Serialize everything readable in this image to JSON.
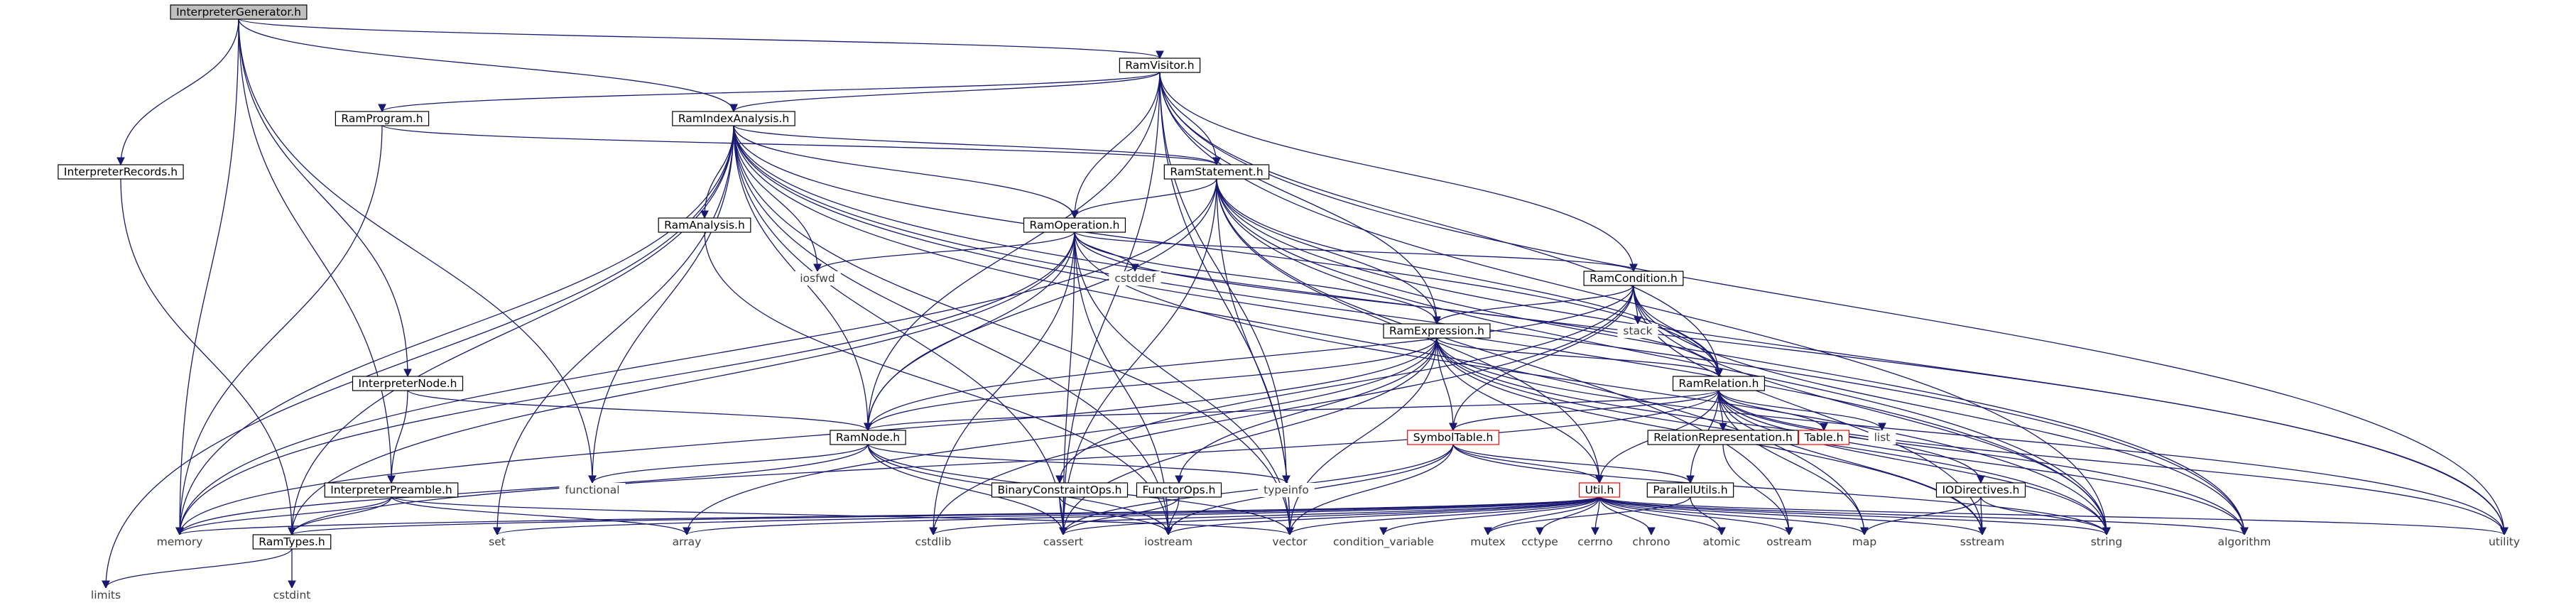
{
  "diagram": {
    "colors": {
      "edge": "#191970",
      "box_border": "#000000",
      "box_border_truncated": "#ff0000",
      "box_fill": "#ffffff",
      "root_fill": "#bfbfbf",
      "text": "#000000",
      "text_external": "#404040"
    },
    "nodes": {
      "n0": {
        "label": "InterpreterGenerator.h",
        "kind": "root"
      },
      "n1": {
        "label": "RamVisitor.h",
        "kind": "header"
      },
      "n2": {
        "label": "RamProgram.h",
        "kind": "header"
      },
      "n3": {
        "label": "RamIndexAnalysis.h",
        "kind": "header"
      },
      "n4": {
        "label": "RamStatement.h",
        "kind": "header"
      },
      "n5": {
        "label": "InterpreterRecords.h",
        "kind": "header"
      },
      "n6": {
        "label": "RamAnalysis.h",
        "kind": "header"
      },
      "n7": {
        "label": "RamOperation.h",
        "kind": "header"
      },
      "n8": {
        "label": "iosfwd",
        "kind": "external"
      },
      "n9": {
        "label": "cstddef",
        "kind": "external"
      },
      "n10": {
        "label": "RamCondition.h",
        "kind": "header"
      },
      "n11": {
        "label": "stack",
        "kind": "external"
      },
      "n12": {
        "label": "RamExpression.h",
        "kind": "header"
      },
      "n13": {
        "label": "InterpreterNode.h",
        "kind": "header"
      },
      "n14": {
        "label": "RamRelation.h",
        "kind": "header"
      },
      "n15": {
        "label": "RelationRepresentation.h",
        "kind": "header"
      },
      "n16": {
        "label": "Table.h",
        "kind": "truncated"
      },
      "n17": {
        "label": "list",
        "kind": "external"
      },
      "n18": {
        "label": "RamNode.h",
        "kind": "header"
      },
      "n19": {
        "label": "SymbolTable.h",
        "kind": "truncated"
      },
      "n20": {
        "label": "functional",
        "kind": "external"
      },
      "n21": {
        "label": "typeinfo",
        "kind": "external"
      },
      "n22": {
        "label": "InterpreterPreamble.h",
        "kind": "header"
      },
      "n23": {
        "label": "BinaryConstraintOps.h",
        "kind": "header"
      },
      "n24": {
        "label": "FunctorOps.h",
        "kind": "header"
      },
      "n25": {
        "label": "Util.h",
        "kind": "truncated"
      },
      "n26": {
        "label": "ParallelUtils.h",
        "kind": "header"
      },
      "n27": {
        "label": "IODirectives.h",
        "kind": "header"
      },
      "n28": {
        "label": "memory",
        "kind": "external"
      },
      "n29": {
        "label": "RamTypes.h",
        "kind": "header"
      },
      "n30": {
        "label": "set",
        "kind": "external"
      },
      "n31": {
        "label": "array",
        "kind": "external"
      },
      "n32": {
        "label": "cstdlib",
        "kind": "external"
      },
      "n33": {
        "label": "cassert",
        "kind": "external"
      },
      "n34": {
        "label": "iostream",
        "kind": "external"
      },
      "n35": {
        "label": "vector",
        "kind": "external"
      },
      "n36": {
        "label": "condition_variable",
        "kind": "external"
      },
      "n37": {
        "label": "mutex",
        "kind": "external"
      },
      "n38": {
        "label": "cctype",
        "kind": "external"
      },
      "n39": {
        "label": "cerrno",
        "kind": "external"
      },
      "n40": {
        "label": "chrono",
        "kind": "external"
      },
      "n41": {
        "label": "atomic",
        "kind": "external"
      },
      "n42": {
        "label": "ostream",
        "kind": "external"
      },
      "n43": {
        "label": "map",
        "kind": "external"
      },
      "n44": {
        "label": "sstream",
        "kind": "external"
      },
      "n45": {
        "label": "string",
        "kind": "external"
      },
      "n46": {
        "label": "algorithm",
        "kind": "external"
      },
      "n47": {
        "label": "utility",
        "kind": "external"
      },
      "n48": {
        "label": "limits",
        "kind": "external"
      },
      "n49": {
        "label": "cstdint",
        "kind": "external"
      }
    },
    "edges": [
      [
        "n0",
        "n1"
      ],
      [
        "n0",
        "n3"
      ],
      [
        "n0",
        "n5"
      ],
      [
        "n0",
        "n13"
      ],
      [
        "n0",
        "n22"
      ],
      [
        "n0",
        "n20"
      ],
      [
        "n0",
        "n28"
      ],
      [
        "n1",
        "n2"
      ],
      [
        "n1",
        "n3"
      ],
      [
        "n1",
        "n4"
      ],
      [
        "n1",
        "n7"
      ],
      [
        "n1",
        "n10"
      ],
      [
        "n1",
        "n12"
      ],
      [
        "n1",
        "n14"
      ],
      [
        "n1",
        "n18"
      ],
      [
        "n1",
        "n35"
      ],
      [
        "n1",
        "n21"
      ],
      [
        "n1",
        "n47"
      ],
      [
        "n1",
        "n45"
      ],
      [
        "n1",
        "n33"
      ],
      [
        "n2",
        "n4"
      ],
      [
        "n2",
        "n28"
      ],
      [
        "n3",
        "n4"
      ],
      [
        "n3",
        "n6"
      ],
      [
        "n3",
        "n7"
      ],
      [
        "n3",
        "n14"
      ],
      [
        "n3",
        "n18"
      ],
      [
        "n3",
        "n29"
      ],
      [
        "n3",
        "n8"
      ],
      [
        "n3",
        "n20"
      ],
      [
        "n3",
        "n30"
      ],
      [
        "n3",
        "n48"
      ],
      [
        "n3",
        "n28"
      ],
      [
        "n3",
        "n35"
      ],
      [
        "n3",
        "n33"
      ],
      [
        "n3",
        "n43"
      ],
      [
        "n3",
        "n45"
      ],
      [
        "n3",
        "n47"
      ],
      [
        "n3",
        "n34"
      ],
      [
        "n3",
        "n46"
      ],
      [
        "n4",
        "n7"
      ],
      [
        "n4",
        "n12"
      ],
      [
        "n4",
        "n14"
      ],
      [
        "n4",
        "n18"
      ],
      [
        "n4",
        "n25"
      ],
      [
        "n4",
        "n28"
      ],
      [
        "n4",
        "n35"
      ],
      [
        "n4",
        "n45"
      ],
      [
        "n4",
        "n46"
      ],
      [
        "n4",
        "n47"
      ],
      [
        "n4",
        "n42"
      ],
      [
        "n4",
        "n33"
      ],
      [
        "n5",
        "n29"
      ],
      [
        "n6",
        "n34"
      ],
      [
        "n7",
        "n10"
      ],
      [
        "n7",
        "n12"
      ],
      [
        "n7",
        "n14"
      ],
      [
        "n7",
        "n18"
      ],
      [
        "n7",
        "n29"
      ],
      [
        "n7",
        "n8"
      ],
      [
        "n7",
        "n9"
      ],
      [
        "n7",
        "n28"
      ],
      [
        "n7",
        "n35"
      ],
      [
        "n7",
        "n45"
      ],
      [
        "n7",
        "n33"
      ],
      [
        "n7",
        "n34"
      ],
      [
        "n7",
        "n32"
      ],
      [
        "n10",
        "n12"
      ],
      [
        "n10",
        "n14"
      ],
      [
        "n10",
        "n18"
      ],
      [
        "n10",
        "n19"
      ],
      [
        "n10",
        "n11"
      ],
      [
        "n10",
        "n23"
      ],
      [
        "n10",
        "n45"
      ],
      [
        "n10",
        "n44"
      ],
      [
        "n10",
        "n46"
      ],
      [
        "n10",
        "n32"
      ],
      [
        "n12",
        "n14"
      ],
      [
        "n12",
        "n18"
      ],
      [
        "n12",
        "n19"
      ],
      [
        "n12",
        "n24"
      ],
      [
        "n12",
        "n25"
      ],
      [
        "n12",
        "n31"
      ],
      [
        "n12",
        "n28"
      ],
      [
        "n12",
        "n35"
      ],
      [
        "n12",
        "n45"
      ],
      [
        "n12",
        "n44"
      ],
      [
        "n12",
        "n46"
      ],
      [
        "n12",
        "n47"
      ],
      [
        "n12",
        "n33"
      ],
      [
        "n13",
        "n18"
      ],
      [
        "n13",
        "n22"
      ],
      [
        "n14",
        "n18"
      ],
      [
        "n14",
        "n15"
      ],
      [
        "n14",
        "n16"
      ],
      [
        "n14",
        "n17"
      ],
      [
        "n14",
        "n19"
      ],
      [
        "n14",
        "n25"
      ],
      [
        "n14",
        "n26"
      ],
      [
        "n14",
        "n27"
      ],
      [
        "n14",
        "n29"
      ],
      [
        "n14",
        "n43"
      ],
      [
        "n14",
        "n44"
      ],
      [
        "n14",
        "n45"
      ],
      [
        "n14",
        "n46"
      ],
      [
        "n14",
        "n47"
      ],
      [
        "n15",
        "n42"
      ],
      [
        "n18",
        "n20"
      ],
      [
        "n18",
        "n21"
      ],
      [
        "n18",
        "n28"
      ],
      [
        "n18",
        "n35"
      ],
      [
        "n18",
        "n33"
      ],
      [
        "n18",
        "n34"
      ],
      [
        "n19",
        "n25"
      ],
      [
        "n19",
        "n26"
      ],
      [
        "n19",
        "n33"
      ],
      [
        "n19",
        "n34"
      ],
      [
        "n19",
        "n45"
      ],
      [
        "n19",
        "n35"
      ],
      [
        "n22",
        "n28"
      ],
      [
        "n22",
        "n29"
      ],
      [
        "n22",
        "n31"
      ],
      [
        "n22",
        "n35"
      ],
      [
        "n23",
        "n33"
      ],
      [
        "n23",
        "n34"
      ],
      [
        "n24",
        "n33"
      ],
      [
        "n24",
        "n34"
      ],
      [
        "n25",
        "n29"
      ],
      [
        "n25",
        "n28"
      ],
      [
        "n25",
        "n30"
      ],
      [
        "n25",
        "n31"
      ],
      [
        "n25",
        "n32"
      ],
      [
        "n25",
        "n33"
      ],
      [
        "n25",
        "n34"
      ],
      [
        "n25",
        "n35"
      ],
      [
        "n25",
        "n36"
      ],
      [
        "n25",
        "n37"
      ],
      [
        "n25",
        "n38"
      ],
      [
        "n25",
        "n39"
      ],
      [
        "n25",
        "n40"
      ],
      [
        "n25",
        "n41"
      ],
      [
        "n25",
        "n42"
      ],
      [
        "n25",
        "n43"
      ],
      [
        "n25",
        "n44"
      ],
      [
        "n25",
        "n45"
      ],
      [
        "n25",
        "n46"
      ],
      [
        "n25",
        "n47"
      ],
      [
        "n26",
        "n41"
      ],
      [
        "n26",
        "n37"
      ],
      [
        "n27",
        "n43"
      ],
      [
        "n27",
        "n44"
      ],
      [
        "n27",
        "n45"
      ],
      [
        "n29",
        "n48"
      ],
      [
        "n29",
        "n49"
      ]
    ]
  }
}
